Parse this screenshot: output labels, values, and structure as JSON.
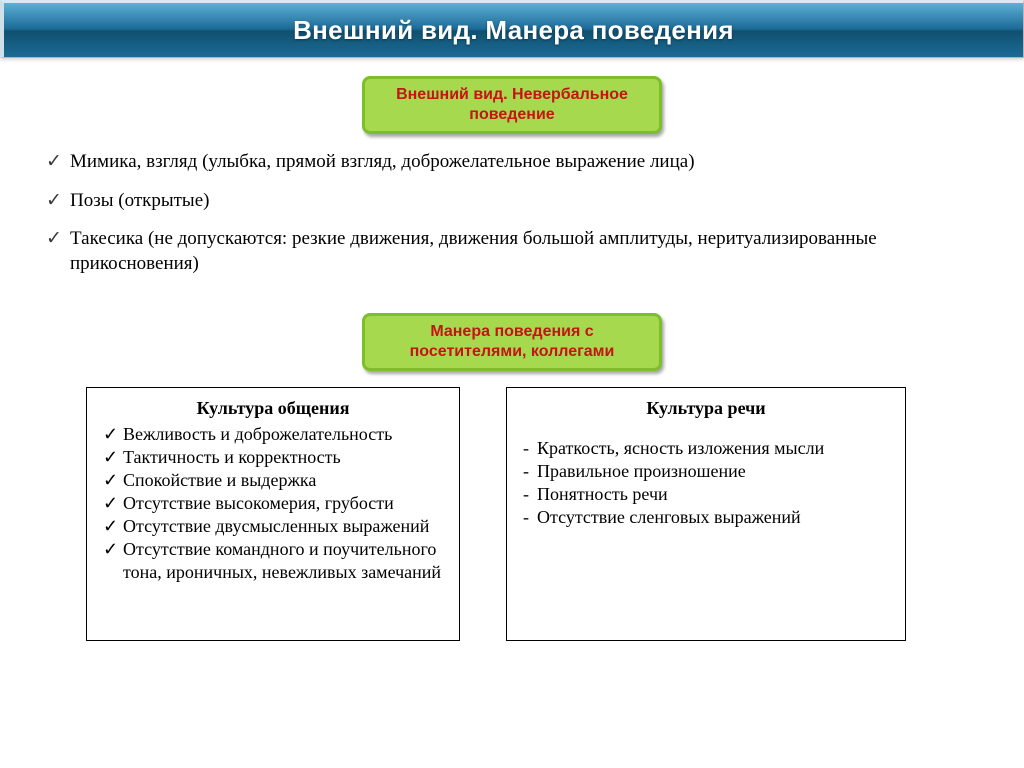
{
  "colors": {
    "titlebar_gradient_top": "#5db0d4",
    "titlebar_gradient_bottom": "#1b6a96",
    "greenbox_fill": "#a7d94e",
    "greenbox_border": "#7dbf2a",
    "greenbox_text": "#c51414",
    "panel_border": "#000000",
    "body_text": "#000000",
    "title_text": "#ffffff"
  },
  "fonts": {
    "title_family": "Arial",
    "title_size_pt": 20,
    "body_family": "Times New Roman",
    "body_size_pt": 14
  },
  "title": "Внешний вид. Манера поведения",
  "box1": {
    "line1": "Внешний вид. Невербальное",
    "line2": "поведение"
  },
  "bullets": [
    "Мимика, взгляд (улыбка, прямой взгляд, доброжелательное выражение лица)",
    "Позы (открытые)",
    "Такесика (не допускаются: резкие движения, движения большой амплитуды, неритуализированные прикосновения)"
  ],
  "box2": {
    "line1": "Манера поведения с",
    "line2": "посетителями, коллегами"
  },
  "left_panel": {
    "title": "Культура общения",
    "items": [
      "Вежливость и доброжелательность",
      "Тактичность и корректность",
      "Спокойствие и выдержка",
      "Отсутствие высокомерия, грубости",
      "Отсутствие двусмысленных выражений",
      "Отсутствие командного и поучительного тона, ироничных, невежливых замечаний"
    ]
  },
  "right_panel": {
    "title": "Культура речи",
    "items": [
      "Краткость, ясность изложения мысли",
      "Правильное произношение",
      "Понятность речи",
      "Отсутствие сленговых выражений"
    ]
  }
}
